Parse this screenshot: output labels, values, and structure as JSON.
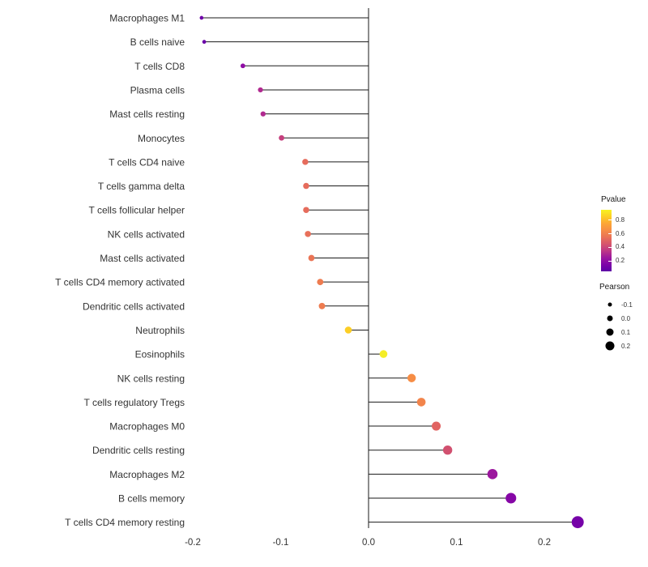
{
  "chart_data": {
    "type": "lollipop",
    "title": "",
    "xlabel": "",
    "ylabel": "",
    "xlim": [
      -0.25,
      0.27
    ],
    "x_ticks": [
      -0.2,
      -0.1,
      0.0,
      0.1,
      0.2
    ],
    "x_tick_labels": [
      "-0.2",
      "-0.1",
      "0.0",
      "0.1",
      "0.2"
    ],
    "grid": false,
    "stem_color": "#1a1a1a",
    "axis_text_color": "#333333",
    "legend_pvalue": {
      "title": "Pvalue",
      "ticks": [
        "0.8",
        "0.6",
        "0.4",
        "0.2"
      ],
      "tick_values": [
        0.8,
        0.6,
        0.4,
        0.2
      ],
      "scale_top": 0.95,
      "scale_bottom": 0.05,
      "gradient": [
        "#f7f321",
        "#fcce25",
        "#fca636",
        "#f68d45",
        "#e97257",
        "#d6556d",
        "#bd3786",
        "#9c179e",
        "#7e03a8",
        "#5c01a6"
      ]
    },
    "legend_pearson": {
      "title": "Pearson",
      "ticks": [
        "-0.1",
        "0.0",
        "0.1",
        "0.2"
      ],
      "tick_values": [
        -0.1,
        0.0,
        0.1,
        0.2
      ],
      "dot_color": "#000000"
    },
    "points": [
      {
        "label": "Macrophages M1",
        "pearson": -0.19,
        "pvalue": 0.2,
        "color": "#6f00a8"
      },
      {
        "label": "B cells naive",
        "pearson": -0.187,
        "pvalue": 0.19,
        "color": "#6a00a8"
      },
      {
        "label": "T cells CD8",
        "pearson": -0.143,
        "pvalue": 0.3,
        "color": "#8f0da4"
      },
      {
        "label": "Plasma cells",
        "pearson": -0.123,
        "pvalue": 0.4,
        "color": "#b12a90"
      },
      {
        "label": "Mast cells resting",
        "pearson": -0.12,
        "pvalue": 0.4,
        "color": "#b12a90"
      },
      {
        "label": "Monocytes",
        "pearson": -0.099,
        "pvalue": 0.47,
        "color": "#c5407e"
      },
      {
        "label": "T cells CD4 naive",
        "pearson": -0.072,
        "pvalue": 0.63,
        "color": "#e66c5c"
      },
      {
        "label": "T cells gamma delta",
        "pearson": -0.071,
        "pvalue": 0.63,
        "color": "#e66c5c"
      },
      {
        "label": "T cells follicular helper",
        "pearson": -0.071,
        "pvalue": 0.63,
        "color": "#e66c5c"
      },
      {
        "label": "NK cells activated",
        "pearson": -0.069,
        "pvalue": 0.64,
        "color": "#e8705a"
      },
      {
        "label": "Mast cells activated",
        "pearson": -0.065,
        "pvalue": 0.65,
        "color": "#ea7455"
      },
      {
        "label": "T cells CD4 memory activated",
        "pearson": -0.055,
        "pvalue": 0.67,
        "color": "#ee7c50"
      },
      {
        "label": "Dendritic cells activated",
        "pearson": -0.053,
        "pvalue": 0.67,
        "color": "#ee7c50"
      },
      {
        "label": "Neutrophils",
        "pearson": -0.023,
        "pvalue": 0.9,
        "color": "#fcce25"
      },
      {
        "label": "Eosinophils",
        "pearson": 0.017,
        "pvalue": 0.96,
        "color": "#f4ed27"
      },
      {
        "label": "NK cells resting",
        "pearson": 0.049,
        "pvalue": 0.74,
        "color": "#f68d45"
      },
      {
        "label": "T cells regulatory Tregs",
        "pearson": 0.06,
        "pvalue": 0.7,
        "color": "#f2844b"
      },
      {
        "label": "Macrophages M0",
        "pearson": 0.077,
        "pvalue": 0.6,
        "color": "#e16462"
      },
      {
        "label": "Dendritic cells resting",
        "pearson": 0.09,
        "pvalue": 0.52,
        "color": "#d1506f"
      },
      {
        "label": "Macrophages M2",
        "pearson": 0.141,
        "pvalue": 0.31,
        "color": "#9c179e"
      },
      {
        "label": "B cells memory",
        "pearson": 0.162,
        "pvalue": 0.25,
        "color": "#8606a6"
      },
      {
        "label": "T cells CD4 memory resting",
        "pearson": 0.238,
        "pvalue": 0.15,
        "color": "#7602a8"
      }
    ]
  }
}
